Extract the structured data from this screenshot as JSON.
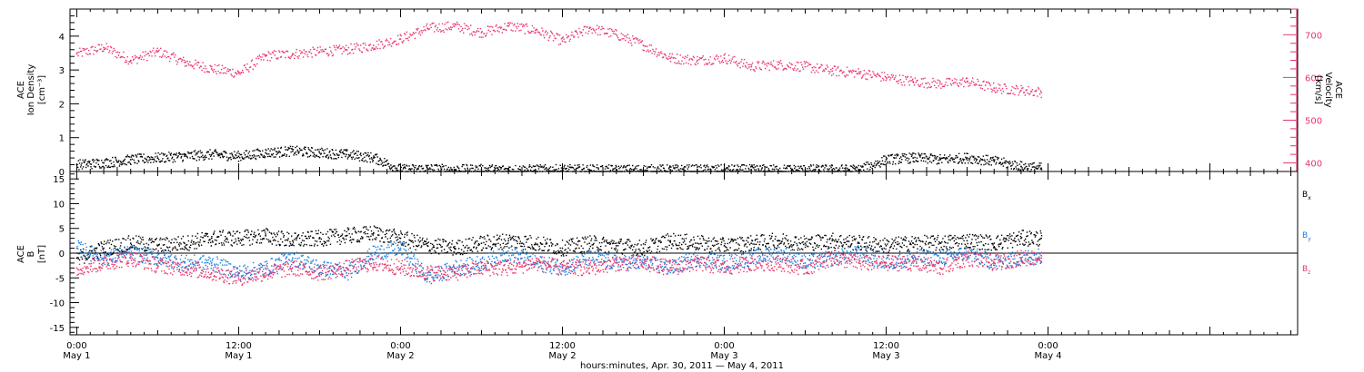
{
  "chart_data": [
    {
      "type": "scatter",
      "panel": "top",
      "ylabel_left": [
        "ACE",
        "Ion Density",
        "[cm⁻³]"
      ],
      "ylabel_right": [
        "ACE",
        "Velocity",
        "[km/s]"
      ],
      "left_ylim": [
        0,
        4.8
      ],
      "left_yticks": [
        "0",
        "1",
        "2",
        "3",
        "4"
      ],
      "right_ylim": [
        380,
        760
      ],
      "right_yticks": [
        "400",
        "500",
        "600",
        "700"
      ],
      "series": [
        {
          "axis": "right",
          "color": "#e8356a",
          "x_hours": [
            0,
            2,
            4,
            6,
            8,
            10,
            12,
            14,
            16,
            18,
            20,
            22,
            24,
            26,
            28,
            30,
            32,
            34,
            36,
            38,
            40,
            42,
            44,
            46,
            48,
            50,
            52,
            54,
            56,
            58,
            60,
            62,
            64,
            66,
            68,
            70,
            71.5
          ],
          "values": [
            655,
            670,
            640,
            660,
            635,
            620,
            610,
            650,
            655,
            660,
            665,
            675,
            690,
            715,
            720,
            705,
            720,
            710,
            685,
            715,
            700,
            675,
            645,
            640,
            645,
            625,
            630,
            625,
            615,
            610,
            600,
            590,
            585,
            590,
            575,
            570,
            565
          ]
        },
        {
          "axis": "left",
          "color": "#000000",
          "x_hours": [
            0,
            2,
            4,
            6,
            8,
            10,
            12,
            14,
            16,
            18,
            20,
            22,
            24,
            26,
            28,
            30,
            32,
            34,
            36,
            38,
            40,
            42,
            44,
            46,
            48,
            50,
            52,
            54,
            56,
            58,
            60,
            62,
            64,
            66,
            68,
            70,
            71.5
          ],
          "values": [
            0.2,
            0.25,
            0.35,
            0.4,
            0.45,
            0.5,
            0.45,
            0.55,
            0.6,
            0.55,
            0.5,
            0.4,
            0.05,
            0.08,
            0.05,
            0.06,
            0.05,
            0.05,
            0.05,
            0.05,
            0.04,
            0.05,
            0.05,
            0.05,
            0.05,
            0.05,
            0.05,
            0.05,
            0.05,
            0.05,
            0.35,
            0.4,
            0.35,
            0.4,
            0.3,
            0.15,
            0.1
          ]
        }
      ]
    },
    {
      "type": "scatter",
      "panel": "bottom",
      "ylabel_left": [
        "ACE",
        "B",
        "[nT]"
      ],
      "ylim": [
        -16.5,
        16.5
      ],
      "yticks": [
        "-15",
        "-10",
        "-5",
        "0",
        "5",
        "10",
        "15"
      ],
      "legend": [
        {
          "label": "B",
          "sub": "x",
          "color": "#000000"
        },
        {
          "label": "B",
          "sub": "y",
          "color": "#1a7fe0"
        },
        {
          "label": "B",
          "sub": "z",
          "color": "#e8356a"
        }
      ],
      "series": [
        {
          "name": "Bx",
          "color": "#000000",
          "x_hours": [
            0,
            2,
            4,
            6,
            8,
            10,
            12,
            14,
            16,
            18,
            20,
            22,
            24,
            26,
            28,
            30,
            32,
            34,
            36,
            38,
            40,
            42,
            44,
            46,
            48,
            50,
            52,
            54,
            56,
            58,
            60,
            62,
            64,
            66,
            68,
            70,
            71.5
          ],
          "values": [
            -1,
            1,
            2,
            1.5,
            2,
            3,
            3,
            3.5,
            2.5,
            3,
            3.5,
            4,
            3,
            1.5,
            1,
            2,
            2.5,
            2,
            1,
            2,
            1.5,
            1,
            2.5,
            2,
            1.5,
            2,
            2.5,
            2,
            2.5,
            2,
            1.5,
            2,
            2,
            2.5,
            2,
            3,
            3
          ]
        },
        {
          "name": "By",
          "color": "#1a7fe0",
          "x_hours": [
            0,
            2,
            4,
            6,
            8,
            10,
            12,
            14,
            16,
            18,
            20,
            22,
            24,
            26,
            28,
            30,
            32,
            34,
            36,
            38,
            40,
            42,
            44,
            46,
            48,
            50,
            52,
            54,
            56,
            58,
            60,
            62,
            64,
            66,
            68,
            70,
            71.5
          ],
          "values": [
            1,
            -1,
            0,
            -1,
            -2,
            -2,
            -4,
            -3,
            -1,
            -3,
            -4,
            0,
            1,
            -5,
            -3,
            -2,
            0,
            -2,
            -3,
            -1,
            -2,
            -2,
            -3,
            -1,
            -2,
            -1,
            0,
            -2,
            -1,
            0,
            -2,
            -1,
            -1,
            0,
            -2,
            -1,
            -0.5
          ]
        },
        {
          "name": "Bz",
          "color": "#e8356a",
          "x_hours": [
            0,
            2,
            4,
            6,
            8,
            10,
            12,
            14,
            16,
            18,
            20,
            22,
            24,
            26,
            28,
            30,
            32,
            34,
            36,
            38,
            40,
            42,
            44,
            46,
            48,
            50,
            52,
            54,
            56,
            58,
            60,
            62,
            64,
            66,
            68,
            70,
            71.5
          ],
          "values": [
            -3,
            -2,
            -1,
            -2.5,
            -3,
            -4,
            -5,
            -4,
            -3,
            -4,
            -3,
            -2,
            -3,
            -4,
            -4,
            -3,
            -3,
            -2,
            -3,
            -3,
            -2,
            -2,
            -3,
            -2,
            -3,
            -2,
            -2,
            -3,
            -1,
            -2,
            -2,
            -2,
            -3,
            -1,
            -2,
            -1,
            -1
          ]
        }
      ]
    }
  ],
  "x_axis": {
    "range_hours": [
      -0.5,
      90.5
    ],
    "ticks": [
      {
        "hour": 0,
        "time": "0:00",
        "date": "May 1"
      },
      {
        "hour": 12,
        "time": "12:00",
        "date": "May 1"
      },
      {
        "hour": 24,
        "time": "0:00",
        "date": "May 2"
      },
      {
        "hour": 36,
        "time": "12:00",
        "date": "May 2"
      },
      {
        "hour": 48,
        "time": "0:00",
        "date": "May 3"
      },
      {
        "hour": 60,
        "time": "12:00",
        "date": "May 3"
      },
      {
        "hour": 72,
        "time": "0:00",
        "date": "May 4"
      }
    ],
    "label": "hours:minutes, Apr. 30, 2011 — May  4, 2011"
  }
}
